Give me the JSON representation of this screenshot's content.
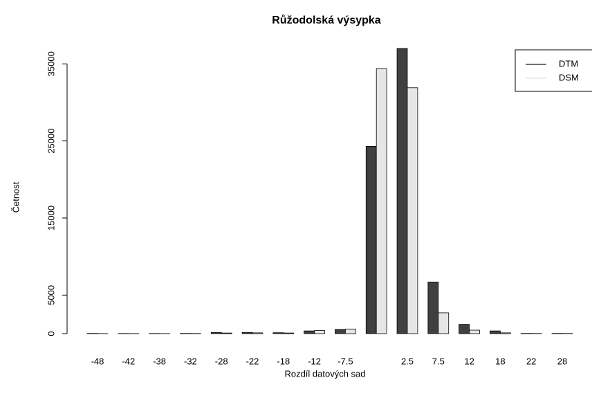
{
  "chart_data": {
    "type": "bar",
    "title": "Růžodolská výsypka",
    "x_label": "Rozdíl datových sad",
    "y_label": "Četnost",
    "categories": [
      "-48",
      "-42",
      "-38",
      "-32",
      "-28",
      "-22",
      "-18",
      "-12",
      "-7.5",
      null,
      "2.5",
      "7.5",
      "12",
      "18",
      "22",
      "28"
    ],
    "series": [
      {
        "name": "DTM",
        "color": "#404040",
        "values": [
          30,
          20,
          20,
          30,
          150,
          150,
          120,
          350,
          550,
          24300,
          37000,
          6700,
          1200,
          350,
          30,
          30
        ]
      },
      {
        "name": "DSM",
        "color": "#e6e6e6",
        "values": [
          10,
          10,
          10,
          20,
          80,
          100,
          80,
          400,
          600,
          34400,
          31900,
          2700,
          450,
          100,
          20,
          20
        ]
      }
    ],
    "ylim": [
      0,
      37000
    ],
    "yticks": [
      0,
      5000,
      15000,
      25000,
      35000
    ],
    "legend": "top-right"
  }
}
